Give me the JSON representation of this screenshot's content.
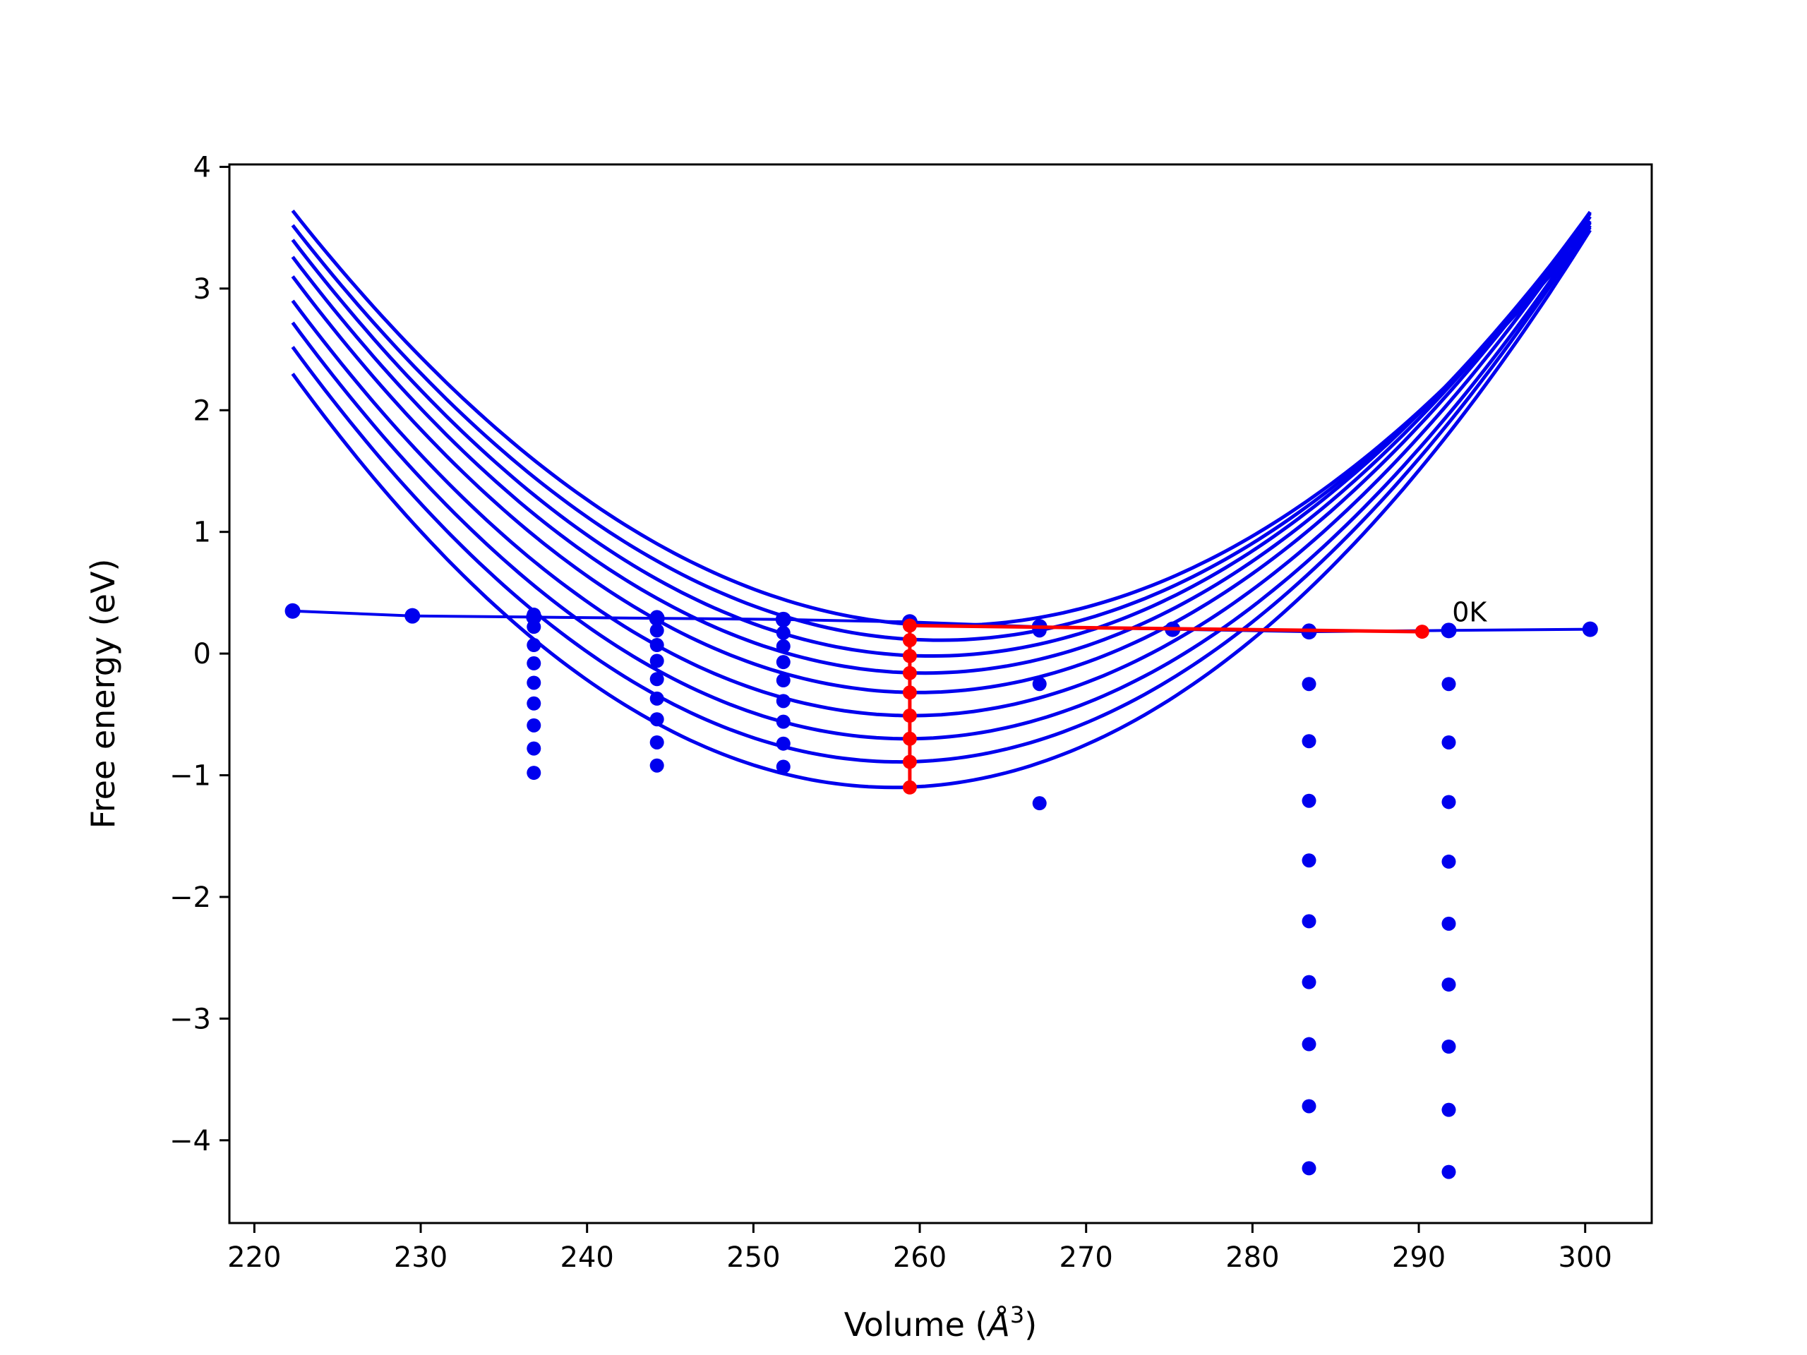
{
  "chart_data": {
    "type": "line",
    "xlabel_prefix": "Volume (",
    "xlabel_unit": "Å",
    "xlabel_exp": "3",
    "xlabel_suffix": ")",
    "ylabel": "Free energy (eV)",
    "xlim": [
      218.5,
      304
    ],
    "ylim": [
      -4.68,
      4.02
    ],
    "xticks": [
      220,
      230,
      240,
      250,
      260,
      270,
      280,
      290,
      300
    ],
    "yticks": [
      -4,
      -3,
      -2,
      -1,
      0,
      1,
      2,
      3,
      4
    ],
    "grid": false,
    "legend": "none",
    "annotations": [
      {
        "text": "0K",
        "x": 292,
        "y": 0.3
      }
    ],
    "colors": {
      "curves": "#0000ee",
      "points": "#0000ee",
      "highlight": "#ff0000",
      "axes": "#000000"
    },
    "curve_fits": {
      "x_range": [
        222.3,
        300.3
      ],
      "curves": [
        {
          "v0": 261.7,
          "e_min": 0.23,
          "e_left": 3.64
        },
        {
          "v0": 261.2,
          "e_min": 0.11,
          "e_left": 3.52
        },
        {
          "v0": 260.7,
          "e_min": -0.02,
          "e_left": 3.4
        },
        {
          "v0": 260.3,
          "e_min": -0.16,
          "e_left": 3.26
        },
        {
          "v0": 259.9,
          "e_min": -0.32,
          "e_left": 3.1
        },
        {
          "v0": 259.5,
          "e_min": -0.51,
          "e_left": 2.9
        },
        {
          "v0": 259.2,
          "e_min": -0.7,
          "e_left": 2.72
        },
        {
          "v0": 258.8,
          "e_min": -0.89,
          "e_left": 2.52
        },
        {
          "v0": 258.4,
          "e_min": -1.1,
          "e_left": 2.3
        }
      ]
    },
    "series": [
      {
        "role": "zero-kelvin-line",
        "x": [
          222.3,
          229.5,
          236.8,
          244.2,
          251.8,
          259.4,
          267.2,
          275.2,
          283.4,
          291.8,
          300.3
        ],
        "y": [
          0.35,
          0.31,
          0.3,
          0.29,
          0.28,
          0.26,
          0.22,
          0.2,
          0.18,
          0.19,
          0.2
        ]
      },
      {
        "role": "points",
        "x": [
          236.8,
          236.8,
          236.8,
          236.8,
          236.8,
          236.8,
          236.8,
          236.8,
          236.8,
          244.2,
          244.2,
          244.2,
          244.2,
          244.2,
          244.2,
          244.2,
          244.2,
          244.2,
          251.8,
          251.8,
          251.8,
          251.8,
          251.8,
          251.8,
          251.8,
          251.8,
          251.8,
          267.2,
          267.2,
          267.2,
          283.4,
          283.4,
          283.4,
          283.4,
          283.4,
          283.4,
          283.4,
          283.4,
          283.4,
          291.8,
          291.8,
          291.8,
          291.8,
          291.8,
          291.8,
          291.8,
          291.8,
          291.8
        ],
        "y": [
          0.32,
          0.22,
          0.07,
          -0.08,
          -0.24,
          -0.41,
          -0.59,
          -0.78,
          -0.98,
          0.3,
          0.19,
          0.07,
          -0.06,
          -0.21,
          -0.37,
          -0.54,
          -0.73,
          -0.92,
          0.28,
          0.17,
          0.06,
          -0.07,
          -0.22,
          -0.39,
          -0.56,
          -0.74,
          -0.93,
          0.19,
          -0.25,
          -1.23,
          0.19,
          -0.25,
          -0.72,
          -1.21,
          -1.7,
          -2.2,
          -2.7,
          -3.21,
          -3.72,
          0.19,
          -0.25,
          -0.73,
          -1.22,
          -1.71,
          -2.22,
          -2.72,
          -3.23,
          -3.75
        ]
      },
      {
        "role": "highlight-equilibrium",
        "x": [
          290.2,
          259.4,
          259.4,
          259.4,
          259.4,
          259.4,
          259.4,
          259.4,
          259.4,
          259.4
        ],
        "y": [
          0.18,
          0.23,
          0.11,
          -0.02,
          -0.16,
          -0.32,
          -0.51,
          -0.7,
          -0.89,
          -1.1
        ]
      }
    ],
    "extra_points": {
      "x": [
        283.4,
        291.8
      ],
      "y": [
        -4.23,
        -4.26
      ]
    }
  }
}
